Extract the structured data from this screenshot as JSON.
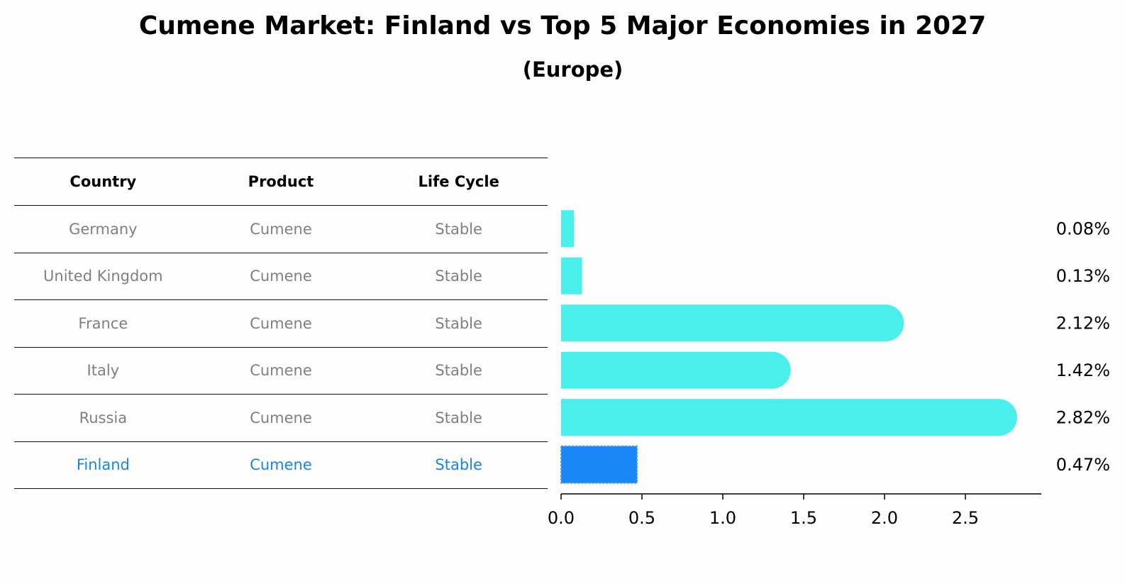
{
  "header": {
    "title": "Cumene Market: Finland vs Top 5 Major Economies in 2027",
    "subtitle": "(Europe)"
  },
  "table": {
    "columns": [
      "Country",
      "Product",
      "Life Cycle"
    ],
    "rows": [
      {
        "country": "Germany",
        "product": "Cumene",
        "life_cycle": "Stable"
      },
      {
        "country": "United Kingdom",
        "product": "Cumene",
        "life_cycle": "Stable"
      },
      {
        "country": "France",
        "product": "Cumene",
        "life_cycle": "Stable"
      },
      {
        "country": "Italy",
        "product": "Cumene",
        "life_cycle": "Stable"
      },
      {
        "country": "Russia",
        "product": "Cumene",
        "life_cycle": "Stable"
      },
      {
        "country": "Finland",
        "product": "Cumene",
        "life_cycle": "Stable"
      }
    ]
  },
  "colors": {
    "bar": "#4aeeeb",
    "highlight": "#1a85f5",
    "highlight_text": "#1a85e0",
    "muted_text": "#808080"
  },
  "chart_data": {
    "type": "bar",
    "orientation": "horizontal",
    "title": "Cumene Market: Finland vs Top 5 Major Economies in 2027",
    "subtitle": "(Europe)",
    "categories": [
      "Germany",
      "United Kingdom",
      "France",
      "Italy",
      "Russia",
      "Finland"
    ],
    "values": [
      0.08,
      0.13,
      2.12,
      1.42,
      2.82,
      0.47
    ],
    "value_labels": [
      "0.08%",
      "0.13%",
      "2.12%",
      "1.42%",
      "2.82%",
      "0.47%"
    ],
    "highlight": "Finland",
    "xlim": [
      0,
      2.96
    ],
    "xticks": [
      0.0,
      0.5,
      1.0,
      1.5,
      2.0,
      2.5
    ],
    "xtick_labels": [
      "0.0",
      "0.5",
      "1.0",
      "1.5",
      "2.0",
      "2.5"
    ],
    "xlabel": "",
    "ylabel": "",
    "grid": false,
    "legend": "none"
  }
}
